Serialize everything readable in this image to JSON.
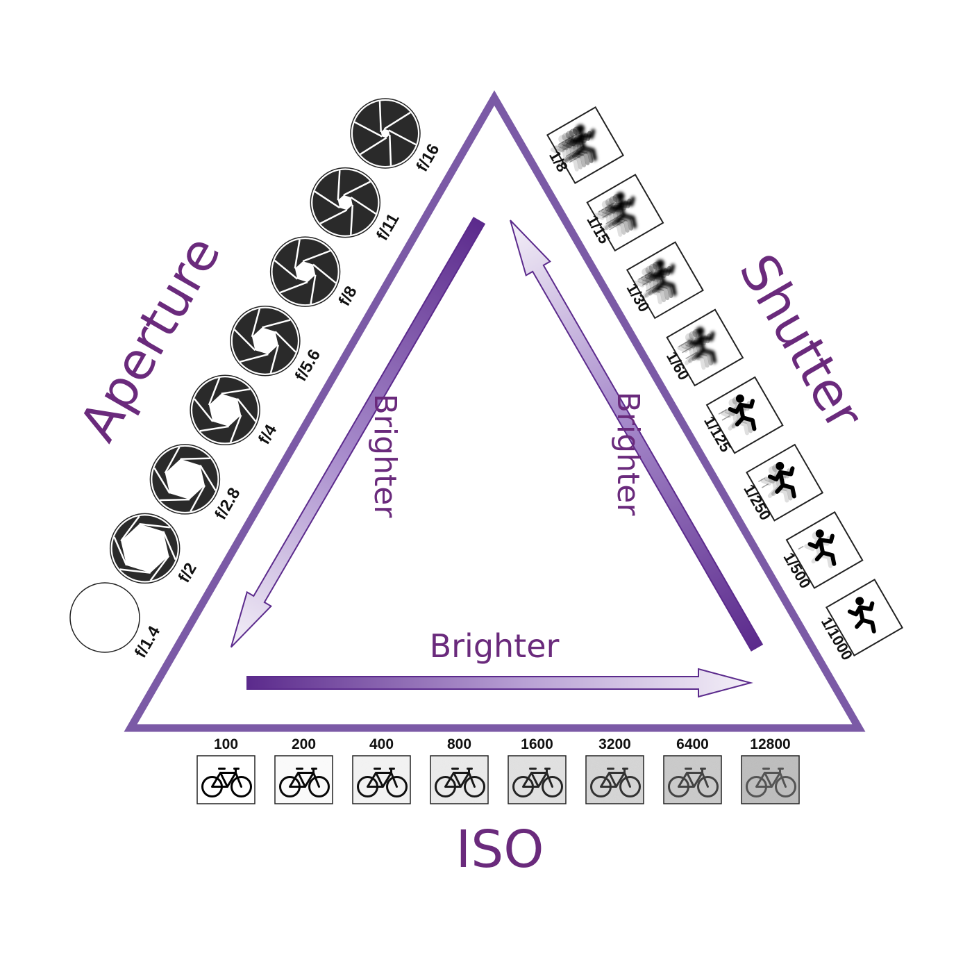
{
  "title_labels": {
    "aperture": "Aperture",
    "shutter": "Shutter",
    "iso": "ISO"
  },
  "arrows": {
    "left_label": "Brighter",
    "right_label": "Brighter",
    "bottom_label": "Brighter"
  },
  "aperture": {
    "stops": [
      "f/1.4",
      "f/2",
      "f/2.8",
      "f/4",
      "f/5.6",
      "f/8",
      "f/11",
      "f/16"
    ],
    "closure": [
      0.0,
      0.18,
      0.32,
      0.45,
      0.55,
      0.65,
      0.75,
      0.85
    ]
  },
  "shutter": {
    "speeds": [
      "1/8",
      "1/15",
      "1/30",
      "1/60",
      "1/125",
      "1/250",
      "1/500",
      "1/1000"
    ],
    "blur": [
      1.0,
      0.85,
      0.65,
      0.5,
      0.3,
      0.2,
      0.1,
      0.0
    ]
  },
  "iso": {
    "values": [
      "100",
      "200",
      "400",
      "800",
      "1600",
      "3200",
      "6400",
      "12800"
    ],
    "noise": [
      0.0,
      0.05,
      0.12,
      0.2,
      0.3,
      0.42,
      0.55,
      0.7
    ]
  },
  "colors": {
    "purple": "#7b5aa6",
    "dark_purple": "#5b2a8c",
    "text_purple": "#6a2a7c"
  },
  "icons": {
    "aperture": "aperture-icon",
    "shutter": "running-figure-icon",
    "iso": "bicycle-icon"
  }
}
